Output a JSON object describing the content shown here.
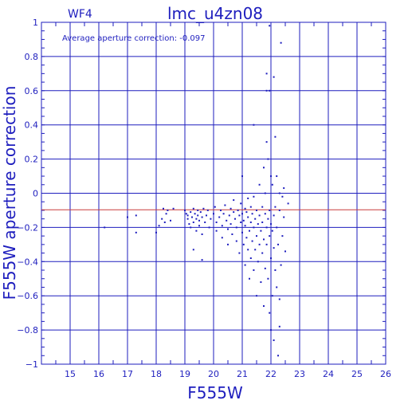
{
  "chart_data": {
    "type": "scatter",
    "title": "lmc_u4zn08",
    "chip_label": "WF4",
    "annotation": "Average aperture correction: -0.097",
    "xlabel": "F555W",
    "ylabel": "F555W aperture correction",
    "xlim": [
      14,
      26
    ],
    "ylim": [
      -1,
      1
    ],
    "x_ticks": [
      15,
      16,
      17,
      18,
      19,
      20,
      21,
      22,
      23,
      24,
      25,
      26
    ],
    "y_ticks": [
      -1,
      -0.8,
      -0.6,
      -0.4,
      -0.2,
      0,
      0.2,
      0.4,
      0.6,
      0.8,
      1
    ],
    "x_tick_labels": [
      "15",
      "16",
      "17",
      "18",
      "19",
      "20",
      "21",
      "22",
      "23",
      "24",
      "25",
      "26"
    ],
    "y_tick_labels": [
      "−1",
      "−0.8",
      "−0.6",
      "−0.4",
      "−0.2",
      "0",
      "0.2",
      "0.4",
      "0.6",
      "0.8",
      "1"
    ],
    "grid": true,
    "reference_line": {
      "y": -0.097,
      "color": "#c83c3c"
    },
    "colors": {
      "axes": "#1e1ebe",
      "points": "#1e1ebe",
      "background": "#ffffff"
    },
    "points": [
      [
        16.2,
        -0.2
      ],
      [
        17.0,
        -0.14
      ],
      [
        17.3,
        -0.13
      ],
      [
        17.3,
        -0.23
      ],
      [
        18.0,
        -0.23
      ],
      [
        18.1,
        -0.19
      ],
      [
        18.2,
        -0.15
      ],
      [
        18.25,
        -0.09
      ],
      [
        18.3,
        -0.17
      ],
      [
        18.35,
        -0.12
      ],
      [
        18.4,
        -0.1
      ],
      [
        18.5,
        -0.16
      ],
      [
        18.6,
        -0.09
      ],
      [
        19.0,
        -0.1
      ],
      [
        19.05,
        -0.12
      ],
      [
        19.1,
        -0.15
      ],
      [
        19.1,
        -0.13
      ],
      [
        19.15,
        -0.18
      ],
      [
        19.2,
        -0.11
      ],
      [
        19.2,
        -0.2
      ],
      [
        19.25,
        -0.14
      ],
      [
        19.3,
        -0.09
      ],
      [
        19.3,
        -0.17
      ],
      [
        19.35,
        -0.12
      ],
      [
        19.4,
        -0.15
      ],
      [
        19.4,
        -0.22
      ],
      [
        19.45,
        -0.1
      ],
      [
        19.45,
        -0.13
      ],
      [
        19.5,
        -0.16
      ],
      [
        19.5,
        -0.19
      ],
      [
        19.55,
        -0.11
      ],
      [
        19.6,
        -0.14
      ],
      [
        19.6,
        -0.24
      ],
      [
        19.65,
        -0.09
      ],
      [
        19.7,
        -0.17
      ],
      [
        19.75,
        -0.13
      ],
      [
        19.8,
        -0.1
      ],
      [
        19.85,
        -0.2
      ],
      [
        19.9,
        -0.15
      ],
      [
        19.3,
        -0.33
      ],
      [
        19.6,
        -0.39
      ],
      [
        20.0,
        -0.12
      ],
      [
        20.05,
        -0.08
      ],
      [
        20.1,
        -0.17
      ],
      [
        20.1,
        -0.22
      ],
      [
        20.2,
        -0.14
      ],
      [
        20.25,
        -0.1
      ],
      [
        20.3,
        -0.19
      ],
      [
        20.3,
        -0.26
      ],
      [
        20.35,
        -0.12
      ],
      [
        20.4,
        -0.07
      ],
      [
        20.45,
        -0.16
      ],
      [
        20.5,
        -0.21
      ],
      [
        20.5,
        -0.3
      ],
      [
        20.55,
        -0.13
      ],
      [
        20.6,
        -0.09
      ],
      [
        20.6,
        -0.18
      ],
      [
        20.65,
        -0.24
      ],
      [
        20.7,
        -0.11
      ],
      [
        20.7,
        -0.04
      ],
      [
        20.75,
        -0.15
      ],
      [
        20.8,
        -0.28
      ],
      [
        20.8,
        -0.2
      ],
      [
        20.85,
        -0.1
      ],
      [
        20.9,
        -0.13
      ],
      [
        20.9,
        -0.35
      ],
      [
        20.95,
        -0.17
      ],
      [
        20.95,
        -0.06
      ],
      [
        21.0,
        -0.23
      ],
      [
        21.0,
        -0.12
      ],
      [
        21.0,
        0.1
      ],
      [
        21.05,
        -0.3
      ],
      [
        21.05,
        -0.16
      ],
      [
        21.1,
        -0.09
      ],
      [
        21.1,
        -0.19
      ],
      [
        21.1,
        -0.42
      ],
      [
        21.15,
        -0.26
      ],
      [
        21.15,
        -0.11
      ],
      [
        21.2,
        -0.14
      ],
      [
        21.2,
        -0.33
      ],
      [
        21.2,
        -0.03
      ],
      [
        21.25,
        -0.22
      ],
      [
        21.25,
        -0.5
      ],
      [
        21.3,
        -0.17
      ],
      [
        21.3,
        -0.08
      ],
      [
        21.3,
        -0.38
      ],
      [
        21.35,
        -0.28
      ],
      [
        21.35,
        -0.12
      ],
      [
        21.4,
        -0.2
      ],
      [
        21.4,
        -0.45
      ],
      [
        21.4,
        -0.02
      ],
      [
        21.45,
        -0.15
      ],
      [
        21.45,
        -0.33
      ],
      [
        21.5,
        -0.25
      ],
      [
        21.5,
        -0.1
      ],
      [
        21.5,
        -0.6
      ],
      [
        21.55,
        -0.18
      ],
      [
        21.55,
        -0.4
      ],
      [
        21.6,
        -0.13
      ],
      [
        21.6,
        -0.3
      ],
      [
        21.6,
        0.05
      ],
      [
        21.65,
        -0.22
      ],
      [
        21.65,
        -0.52
      ],
      [
        21.7,
        -0.08
      ],
      [
        21.7,
        -0.35
      ],
      [
        21.7,
        -0.17
      ],
      [
        21.75,
        -0.27
      ],
      [
        21.75,
        -0.66
      ],
      [
        21.75,
        0.15
      ],
      [
        21.8,
        -0.12
      ],
      [
        21.8,
        -0.44
      ],
      [
        21.8,
        0.0
      ],
      [
        21.85,
        -0.2
      ],
      [
        21.85,
        -0.3
      ],
      [
        21.85,
        0.3
      ],
      [
        21.85,
        0.6
      ],
      [
        21.85,
        0.7
      ],
      [
        21.9,
        -0.15
      ],
      [
        21.9,
        -0.5
      ],
      [
        21.9,
        0.2
      ],
      [
        21.95,
        -0.25
      ],
      [
        21.95,
        -0.1
      ],
      [
        21.95,
        -0.7
      ],
      [
        21.95,
        0.98
      ],
      [
        22.0,
        -0.18
      ],
      [
        22.0,
        -0.38
      ],
      [
        22.0,
        0.1
      ],
      [
        22.0,
        -0.8
      ],
      [
        22.05,
        -0.22
      ],
      [
        22.05,
        -0.6
      ],
      [
        22.05,
        0.05
      ],
      [
        22.1,
        -0.13
      ],
      [
        22.1,
        -0.32
      ],
      [
        22.1,
        0.68
      ],
      [
        22.15,
        -0.45
      ],
      [
        22.15,
        -0.08
      ],
      [
        22.15,
        0.33
      ],
      [
        22.2,
        -0.2
      ],
      [
        22.2,
        -0.55
      ],
      [
        22.2,
        0.1
      ],
      [
        22.25,
        -0.3
      ],
      [
        22.25,
        -0.95
      ],
      [
        22.3,
        -0.1
      ],
      [
        22.3,
        0.0
      ],
      [
        22.3,
        -0.62
      ],
      [
        22.35,
        0.88
      ],
      [
        22.35,
        -0.42
      ],
      [
        22.4,
        -0.02
      ],
      [
        22.4,
        -0.25
      ],
      [
        22.45,
        0.03
      ],
      [
        22.45,
        -0.14
      ],
      [
        22.5,
        -0.34
      ],
      [
        22.6,
        -0.06
      ],
      [
        22.1,
        -0.86
      ],
      [
        22.3,
        -0.78
      ],
      [
        21.4,
        0.4
      ],
      [
        21.95,
        0.6
      ]
    ]
  }
}
